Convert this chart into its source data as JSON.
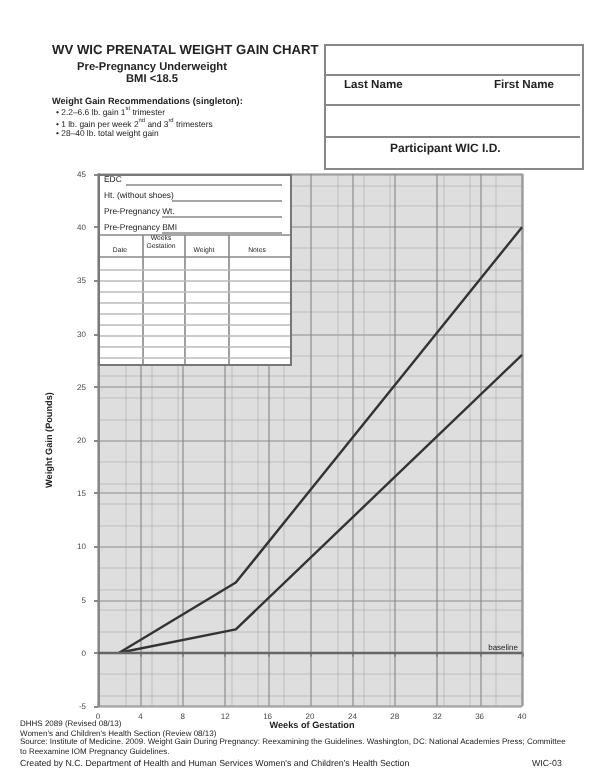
{
  "chart_data": {
    "type": "line",
    "title": "WV WIC PRENATAL WEIGHT GAIN CHART",
    "subtitle": "Pre-Pregnancy Underweight\nBMI <18.5",
    "xlabel": "Weeks of Gestation",
    "ylabel": "Weight Gain (Pounds)",
    "series": [
      {
        "color": "#333333",
        "x": [
          2,
          13,
          40
        ],
        "values": [
          0,
          6.6,
          40
        ]
      },
      {
        "color": "#333333",
        "x": [
          2,
          13,
          40
        ],
        "values": [
          0,
          2.2,
          28
        ]
      }
    ],
    "xlim": [
      0,
      40
    ],
    "xticks": [
      0,
      4,
      8,
      12,
      16,
      20,
      24,
      28,
      32,
      36,
      40
    ],
    "ylim": [
      -5,
      45
    ],
    "yticks": [
      -5,
      0,
      5,
      10,
      15,
      20,
      25,
      30,
      35,
      40,
      45
    ],
    "grid": true,
    "marker": "none",
    "line_style": "solid",
    "ref_lines": [
      {
        "axis": "y",
        "value": 0,
        "label": "baseline",
        "color": "#666666"
      }
    ],
    "annotations": [
      "Weight Gain Recommendations (singleton):",
      "• 2.2–6.6 lb. gain 1$^{st}$ trimester",
      "• 1 lb. gain per week 2$^{nd}$ and 3$^{rd}$ trimesters",
      "• 28–40 lb. total weight gain",
      "Last Name",
      "First Name",
      "Participant WIC I.D.",
      "EDC",
      "Ht. (without shoes)",
      "Pre-Pregnancy Wt.",
      "Pre-Pregnancy BMI",
      "Date",
      "Weeks Gestation",
      "Weight",
      "Notes",
      "DHHS 2089 (Revised 08/13)",
      "Women's and Children's Health Section (Review 08/13)",
      "Source: Institute of Medicine. 2009. Weight Gain During Pregnancy: Reexamining the Guidelines. Washington, DC: National Academies Press; Committee to Reexamine IOM Pregnancy Guidelines.",
      "Created by N.C. Department of Health and Human Services Women's and Children's Health Section",
      "WIC-03"
    ]
  }
}
